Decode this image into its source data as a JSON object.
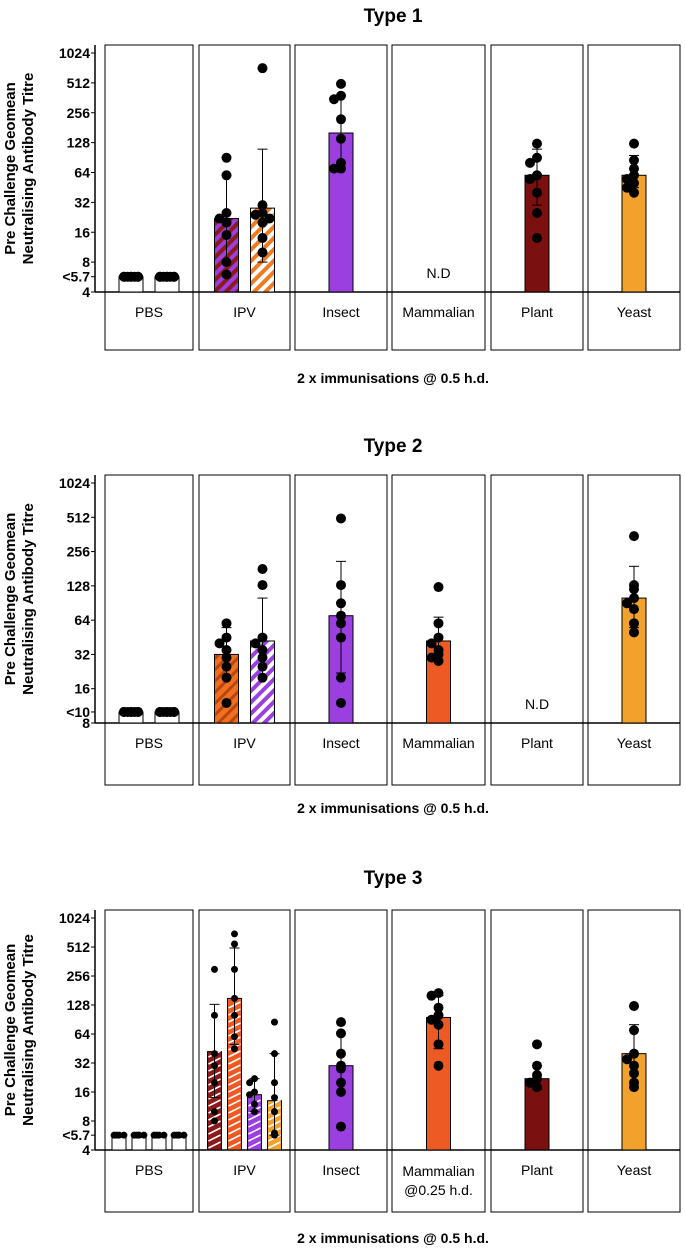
{
  "chart_data": [
    {
      "type": "bar",
      "title": "Type 1",
      "ylabel": [
        "Pre Challenge Geomean",
        "Neutralising Antibody Titre"
      ],
      "yscale": "log2",
      "ylim": [
        4,
        1024
      ],
      "yticks": [
        "<5.7",
        "8",
        "16",
        "32",
        "64",
        "128",
        "256",
        "512",
        "1024"
      ],
      "ytick_values": [
        5.7,
        8,
        16,
        32,
        64,
        128,
        256,
        512,
        1024
      ],
      "xlabel": "2 x immunisations @ 0.5 h.d.",
      "groups": [
        {
          "name": "PBS",
          "bars": [
            {
              "value": 5.7,
              "err": [
                5.7,
                5.7
              ],
              "fill": "#ffffff",
              "pattern": "none",
              "points": [
                5.7,
                5.7,
                5.7,
                5.7,
                5.7,
                5.7,
                5.7,
                5.7
              ]
            },
            {
              "value": 5.7,
              "err": [
                5.7,
                5.7
              ],
              "fill": "#ffffff",
              "pattern": "none",
              "points": [
                5.7,
                5.7,
                5.7,
                5.7,
                5.7,
                5.7,
                5.7,
                5.7
              ]
            }
          ]
        },
        {
          "name": "IPV",
          "bars": [
            {
              "value": 22,
              "err": [
                8,
                60
              ],
              "fill": "#8b1a1a",
              "pattern": "purple-stripes",
              "points": [
                90,
                60,
                25,
                22,
                20,
                15,
                8,
                6
              ]
            },
            {
              "value": 28,
              "err": [
                8,
                110
              ],
              "fill": "#ffffff",
              "pattern": "orange-stripes",
              "points": [
                720,
                30,
                25,
                24,
                22,
                20,
                14,
                10
              ]
            }
          ]
        },
        {
          "name": "Insect",
          "bars": [
            {
              "value": 160,
              "err": [
                70,
                380
              ],
              "fill": "#9b3fe0",
              "pattern": "none",
              "points": [
                500,
                380,
                350,
                220,
                140,
                80,
                70,
                70
              ]
            }
          ]
        },
        {
          "name": "Mammalian",
          "bars": [],
          "note": "N.D"
        },
        {
          "name": "Plant",
          "bars": [
            {
              "value": 60,
              "err": [
                30,
                110
              ],
              "fill": "#7a1010",
              "pattern": "none",
              "points": [
                125,
                90,
                80,
                60,
                55,
                40,
                25,
                14
              ]
            }
          ]
        },
        {
          "name": "Yeast",
          "bars": [
            {
              "value": 60,
              "err": [
                45,
                95
              ],
              "fill": "#f2a22c",
              "pattern": "none",
              "points": [
                125,
                85,
                70,
                60,
                55,
                50,
                45,
                40
              ]
            }
          ]
        }
      ]
    },
    {
      "type": "bar",
      "title": "Type 2",
      "ylabel": [
        "Pre Challenge Geomean",
        "Neutralising Antibody Titre"
      ],
      "yscale": "log2",
      "ylim": [
        8,
        1024
      ],
      "yticks": [
        "<10",
        "16",
        "32",
        "64",
        "128",
        "256",
        "512",
        "1024"
      ],
      "ytick_values": [
        10,
        16,
        32,
        64,
        128,
        256,
        512,
        1024
      ],
      "xlabel": "2 x immunisations @ 0.5 h.d.",
      "groups": [
        {
          "name": "PBS",
          "bars": [
            {
              "value": 10,
              "err": [
                10,
                10
              ],
              "fill": "#ffffff",
              "pattern": "none",
              "points": [
                10,
                10,
                10,
                10,
                10,
                10,
                10,
                10
              ]
            },
            {
              "value": 10,
              "err": [
                10,
                10
              ],
              "fill": "#ffffff",
              "pattern": "none",
              "points": [
                10,
                10,
                10,
                10,
                10,
                10,
                10,
                10
              ]
            }
          ]
        },
        {
          "name": "IPV",
          "bars": [
            {
              "value": 32,
              "err": [
                20,
                55
              ],
              "fill": "#f07020",
              "pattern": "orange-stripes-dark",
              "points": [
                60,
                45,
                40,
                35,
                30,
                25,
                20,
                12
              ]
            },
            {
              "value": 42,
              "err": [
                20,
                100
              ],
              "fill": "#ffffff",
              "pattern": "purple-stripes",
              "points": [
                180,
                130,
                45,
                40,
                35,
                30,
                25,
                20
              ]
            }
          ]
        },
        {
          "name": "Insect",
          "bars": [
            {
              "value": 70,
              "err": [
                22,
                210
              ],
              "fill": "#9b3fe0",
              "pattern": "none",
              "points": [
                500,
                130,
                90,
                70,
                60,
                45,
                20,
                12
              ]
            }
          ]
        },
        {
          "name": "Mammalian",
          "bars": [
            {
              "value": 42,
              "err": [
                28,
                68
              ],
              "fill": "#ee5a24",
              "pattern": "none",
              "points": [
                125,
                60,
                45,
                40,
                35,
                32,
                30,
                28
              ]
            }
          ]
        },
        {
          "name": "Plant",
          "bars": [],
          "note": "N.D"
        },
        {
          "name": "Yeast",
          "bars": [
            {
              "value": 100,
              "err": [
                55,
                190
              ],
              "fill": "#f2a22c",
              "pattern": "none",
              "points": [
                350,
                130,
                120,
                100,
                90,
                80,
                60,
                50
              ]
            }
          ]
        }
      ]
    },
    {
      "type": "bar",
      "title": "Type 3",
      "ylabel": [
        "Pre Challenge Geomean",
        "Neutralising Antibody Titre"
      ],
      "yscale": "log2",
      "ylim": [
        4,
        1024
      ],
      "yticks": [
        "<5.7",
        "8",
        "16",
        "32",
        "64",
        "128",
        "256",
        "512",
        "1024"
      ],
      "ytick_values": [
        5.7,
        8,
        16,
        32,
        64,
        128,
        256,
        512,
        1024
      ],
      "xlabel": "2 x immunisations @ 0.5 h.d.",
      "groups": [
        {
          "name": "PBS",
          "bars": [
            {
              "value": 5.7,
              "err": [
                5.7,
                5.7
              ],
              "fill": "#ffffff",
              "pattern": "none",
              "points": [
                5.7,
                5.7,
                5.7,
                5.7
              ]
            },
            {
              "value": 5.7,
              "err": [
                5.7,
                5.7
              ],
              "fill": "#ffffff",
              "pattern": "none",
              "points": [
                5.7,
                5.7,
                5.7,
                5.7
              ]
            },
            {
              "value": 5.7,
              "err": [
                5.7,
                5.7
              ],
              "fill": "#ffffff",
              "pattern": "none",
              "points": [
                5.7,
                5.7,
                5.7,
                5.7
              ]
            },
            {
              "value": 5.7,
              "err": [
                5.7,
                5.7
              ],
              "fill": "#ffffff",
              "pattern": "none",
              "points": [
                5.7,
                5.7,
                5.7,
                5.7
              ]
            }
          ]
        },
        {
          "name": "IPV",
          "bars": [
            {
              "value": 42,
              "err": [
                14,
                130
              ],
              "fill": "#8b1a1a",
              "pattern": "white-stripes",
              "points": [
                300,
                100,
                40,
                30,
                20,
                10,
                8
              ]
            },
            {
              "value": 150,
              "err": [
                50,
                500
              ],
              "fill": "#ee5a24",
              "pattern": "white-stripes",
              "points": [
                700,
                550,
                300,
                150,
                100,
                60,
                45
              ]
            },
            {
              "value": 15,
              "err": [
                10,
                22
              ],
              "fill": "#9b3fe0",
              "pattern": "white-stripes",
              "points": [
                22,
                20,
                16,
                15,
                12,
                10
              ]
            },
            {
              "value": 13,
              "err": [
                5.7,
                40
              ],
              "fill": "#f2a22c",
              "pattern": "white-stripes",
              "points": [
                85,
                40,
                20,
                14,
                10,
                6,
                5.7
              ]
            }
          ]
        },
        {
          "name": "Insect",
          "bars": [
            {
              "value": 30,
              "err": [
                16,
                65
              ],
              "fill": "#9b3fe0",
              "pattern": "none",
              "points": [
                85,
                65,
                40,
                30,
                28,
                20,
                16,
                7
              ]
            }
          ]
        },
        {
          "name": "Mammalian",
          "bars": [
            {
              "value": 95,
              "err": [
                45,
                160
              ],
              "fill": "#ee5a24",
              "pattern": "none",
              "points": [
                170,
                160,
                120,
                100,
                90,
                80,
                50,
                30
              ]
            }
          ]
        },
        {
          "name": "Plant",
          "bars": [
            {
              "value": 22,
              "err": [
                17,
                30
              ],
              "fill": "#7a1010",
              "pattern": "none",
              "points": [
                50,
                30,
                24,
                22,
                20,
                18
              ]
            }
          ]
        },
        {
          "name": "Yeast",
          "bars": [
            {
              "value": 40,
              "err": [
                20,
                80
              ],
              "fill": "#f2a22c",
              "pattern": "none",
              "points": [
                125,
                70,
                40,
                35,
                30,
                25,
                20,
                18
              ]
            }
          ]
        }
      ],
      "group_sublabels": {
        "Mammalian": "@0.25 h.d."
      }
    }
  ]
}
